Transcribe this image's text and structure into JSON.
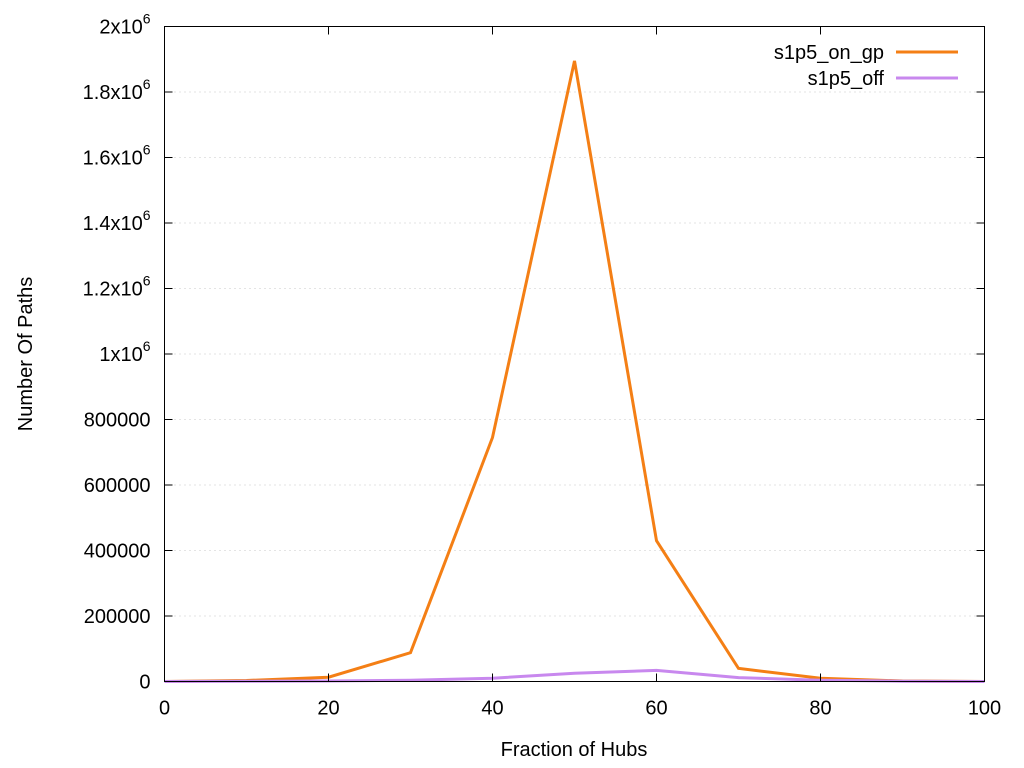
{
  "chart_data": {
    "type": "line",
    "title": "",
    "xlabel": "Fraction of Hubs",
    "ylabel": "Number Of Paths",
    "xlim": [
      0,
      100
    ],
    "ylim": [
      0,
      2000000
    ],
    "grid": true,
    "legend_position": "top-right",
    "x_ticks": [
      {
        "value": 0,
        "label": "0"
      },
      {
        "value": 20,
        "label": "20"
      },
      {
        "value": 40,
        "label": "40"
      },
      {
        "value": 60,
        "label": "60"
      },
      {
        "value": 80,
        "label": "80"
      },
      {
        "value": 100,
        "label": "100"
      }
    ],
    "y_ticks": [
      {
        "value": 0,
        "label": "0",
        "base": "0",
        "exp": ""
      },
      {
        "value": 200000,
        "label": "200000",
        "base": "200000",
        "exp": ""
      },
      {
        "value": 400000,
        "label": "400000",
        "base": "400000",
        "exp": ""
      },
      {
        "value": 600000,
        "label": "600000",
        "base": "600000",
        "exp": ""
      },
      {
        "value": 800000,
        "label": "800000",
        "base": "800000",
        "exp": ""
      },
      {
        "value": 1000000,
        "label": "1x10^6",
        "base": "1x10",
        "exp": "6"
      },
      {
        "value": 1200000,
        "label": "1.2x10^6",
        "base": "1.2x10",
        "exp": "6"
      },
      {
        "value": 1400000,
        "label": "1.4x10^6",
        "base": "1.4x10",
        "exp": "6"
      },
      {
        "value": 1600000,
        "label": "1.6x10^6",
        "base": "1.6x10",
        "exp": "6"
      },
      {
        "value": 1800000,
        "label": "1.8x10^6",
        "base": "1.8x10",
        "exp": "6"
      },
      {
        "value": 2000000,
        "label": "2x10^6",
        "base": "2x10",
        "exp": "6"
      }
    ],
    "series": [
      {
        "name": "s1p5_on_gp",
        "color": "#f47f15",
        "x": [
          0,
          10,
          20,
          30,
          40,
          50,
          60,
          70,
          80,
          90,
          100
        ],
        "values": [
          0,
          3000,
          13000,
          88000,
          745000,
          1895000,
          430000,
          40000,
          10000,
          1500,
          0
        ]
      },
      {
        "name": "s1p5_off",
        "color": "#c888ee",
        "x": [
          0,
          10,
          20,
          30,
          40,
          50,
          60,
          70,
          80,
          90,
          100
        ],
        "values": [
          0,
          500,
          1500,
          4000,
          10000,
          25000,
          34000,
          12000,
          4000,
          1000,
          0
        ]
      }
    ]
  }
}
